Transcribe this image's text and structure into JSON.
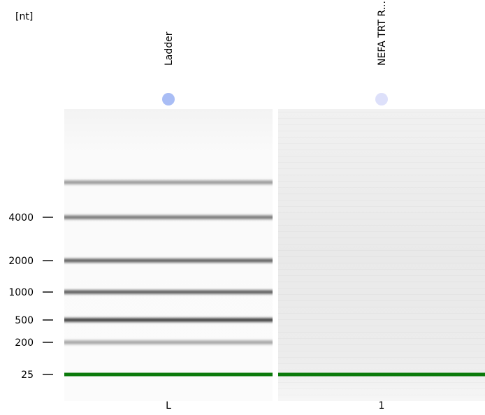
{
  "chart_data": {
    "type": "gel",
    "unit_label": "[nt]",
    "y_scale": "nonlinear-ladder",
    "y_ticks": [
      {
        "label": "4000",
        "value": 4000
      },
      {
        "label": "2000",
        "value": 2000
      },
      {
        "label": "1000",
        "value": 1000
      },
      {
        "label": "500",
        "value": 500
      },
      {
        "label": "200",
        "value": 200
      },
      {
        "label": "25",
        "value": 25
      }
    ],
    "lanes": [
      {
        "id": "L",
        "name": "Ladder",
        "dot_color": "#a9bdf5",
        "background": "#fcfcfc",
        "bands": [
          {
            "size": 6000,
            "intensity": 0.45
          },
          {
            "size": 4000,
            "intensity": 0.6
          },
          {
            "size": 2000,
            "intensity": 0.7
          },
          {
            "size": 1000,
            "intensity": 0.72
          },
          {
            "size": 500,
            "intensity": 0.85
          },
          {
            "size": 200,
            "intensity": 0.4
          }
        ],
        "marker_size": 25
      },
      {
        "id": "1",
        "name": "NEFA TRT R...",
        "dot_color": "#dde0fa",
        "background": "#ececec",
        "bands": [],
        "marker_size": 25
      }
    ],
    "marker_color": "#0b7a0b"
  }
}
